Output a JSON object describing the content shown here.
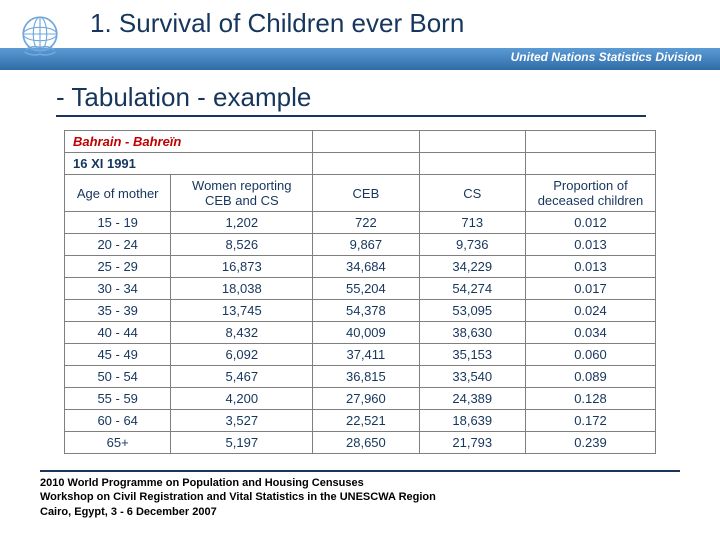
{
  "header": {
    "title": "1. Survival of Children ever Born",
    "org": "United Nations Statistics Division",
    "subtitle": "- Tabulation - example"
  },
  "table": {
    "country": "Bahrain - Bahreïn",
    "date": "16 XI 1991",
    "columns": {
      "c0": "Age of mother",
      "c1": "Women reporting CEB and CS",
      "c2": "CEB",
      "c3": "CS",
      "c4": "Proportion of deceased children"
    },
    "rows": [
      {
        "age": "15 - 19",
        "women": "1,202",
        "ceb": "722",
        "cs": "713",
        "prop": "0.012"
      },
      {
        "age": "20 - 24",
        "women": "8,526",
        "ceb": "9,867",
        "cs": "9,736",
        "prop": "0.013"
      },
      {
        "age": "25 - 29",
        "women": "16,873",
        "ceb": "34,684",
        "cs": "34,229",
        "prop": "0.013"
      },
      {
        "age": "30 - 34",
        "women": "18,038",
        "ceb": "55,204",
        "cs": "54,274",
        "prop": "0.017"
      },
      {
        "age": "35 - 39",
        "women": "13,745",
        "ceb": "54,378",
        "cs": "53,095",
        "prop": "0.024"
      },
      {
        "age": "40 - 44",
        "women": "8,432",
        "ceb": "40,009",
        "cs": "38,630",
        "prop": "0.034"
      },
      {
        "age": "45 - 49",
        "women": "6,092",
        "ceb": "37,411",
        "cs": "35,153",
        "prop": "0.060"
      },
      {
        "age": "50 - 54",
        "women": "5,467",
        "ceb": "36,815",
        "cs": "33,540",
        "prop": "0.089"
      },
      {
        "age": "55 - 59",
        "women": "4,200",
        "ceb": "27,960",
        "cs": "24,389",
        "prop": "0.128"
      },
      {
        "age": "60 - 64",
        "women": "3,527",
        "ceb": "22,521",
        "cs": "18,639",
        "prop": "0.172"
      },
      {
        "age": "65+",
        "women": "5,197",
        "ceb": "28,650",
        "cs": "21,793",
        "prop": "0.239"
      }
    ]
  },
  "footer": {
    "line1": "2010 World Programme on Population and Housing Censuses",
    "line2": "Workshop on Civil Registration and Vital Statistics in the UNESCWA Region",
    "line3": "Cairo, Egypt, 3 - 6 December 2007"
  },
  "style": {
    "title_color": "#17365d",
    "band_gradient_top": "#5b9bd5",
    "band_gradient_bottom": "#2e6ca8",
    "country_color": "#c00000",
    "border_color": "#7f7f7f",
    "col_widths_pct": [
      18,
      24,
      18,
      18,
      22
    ]
  }
}
